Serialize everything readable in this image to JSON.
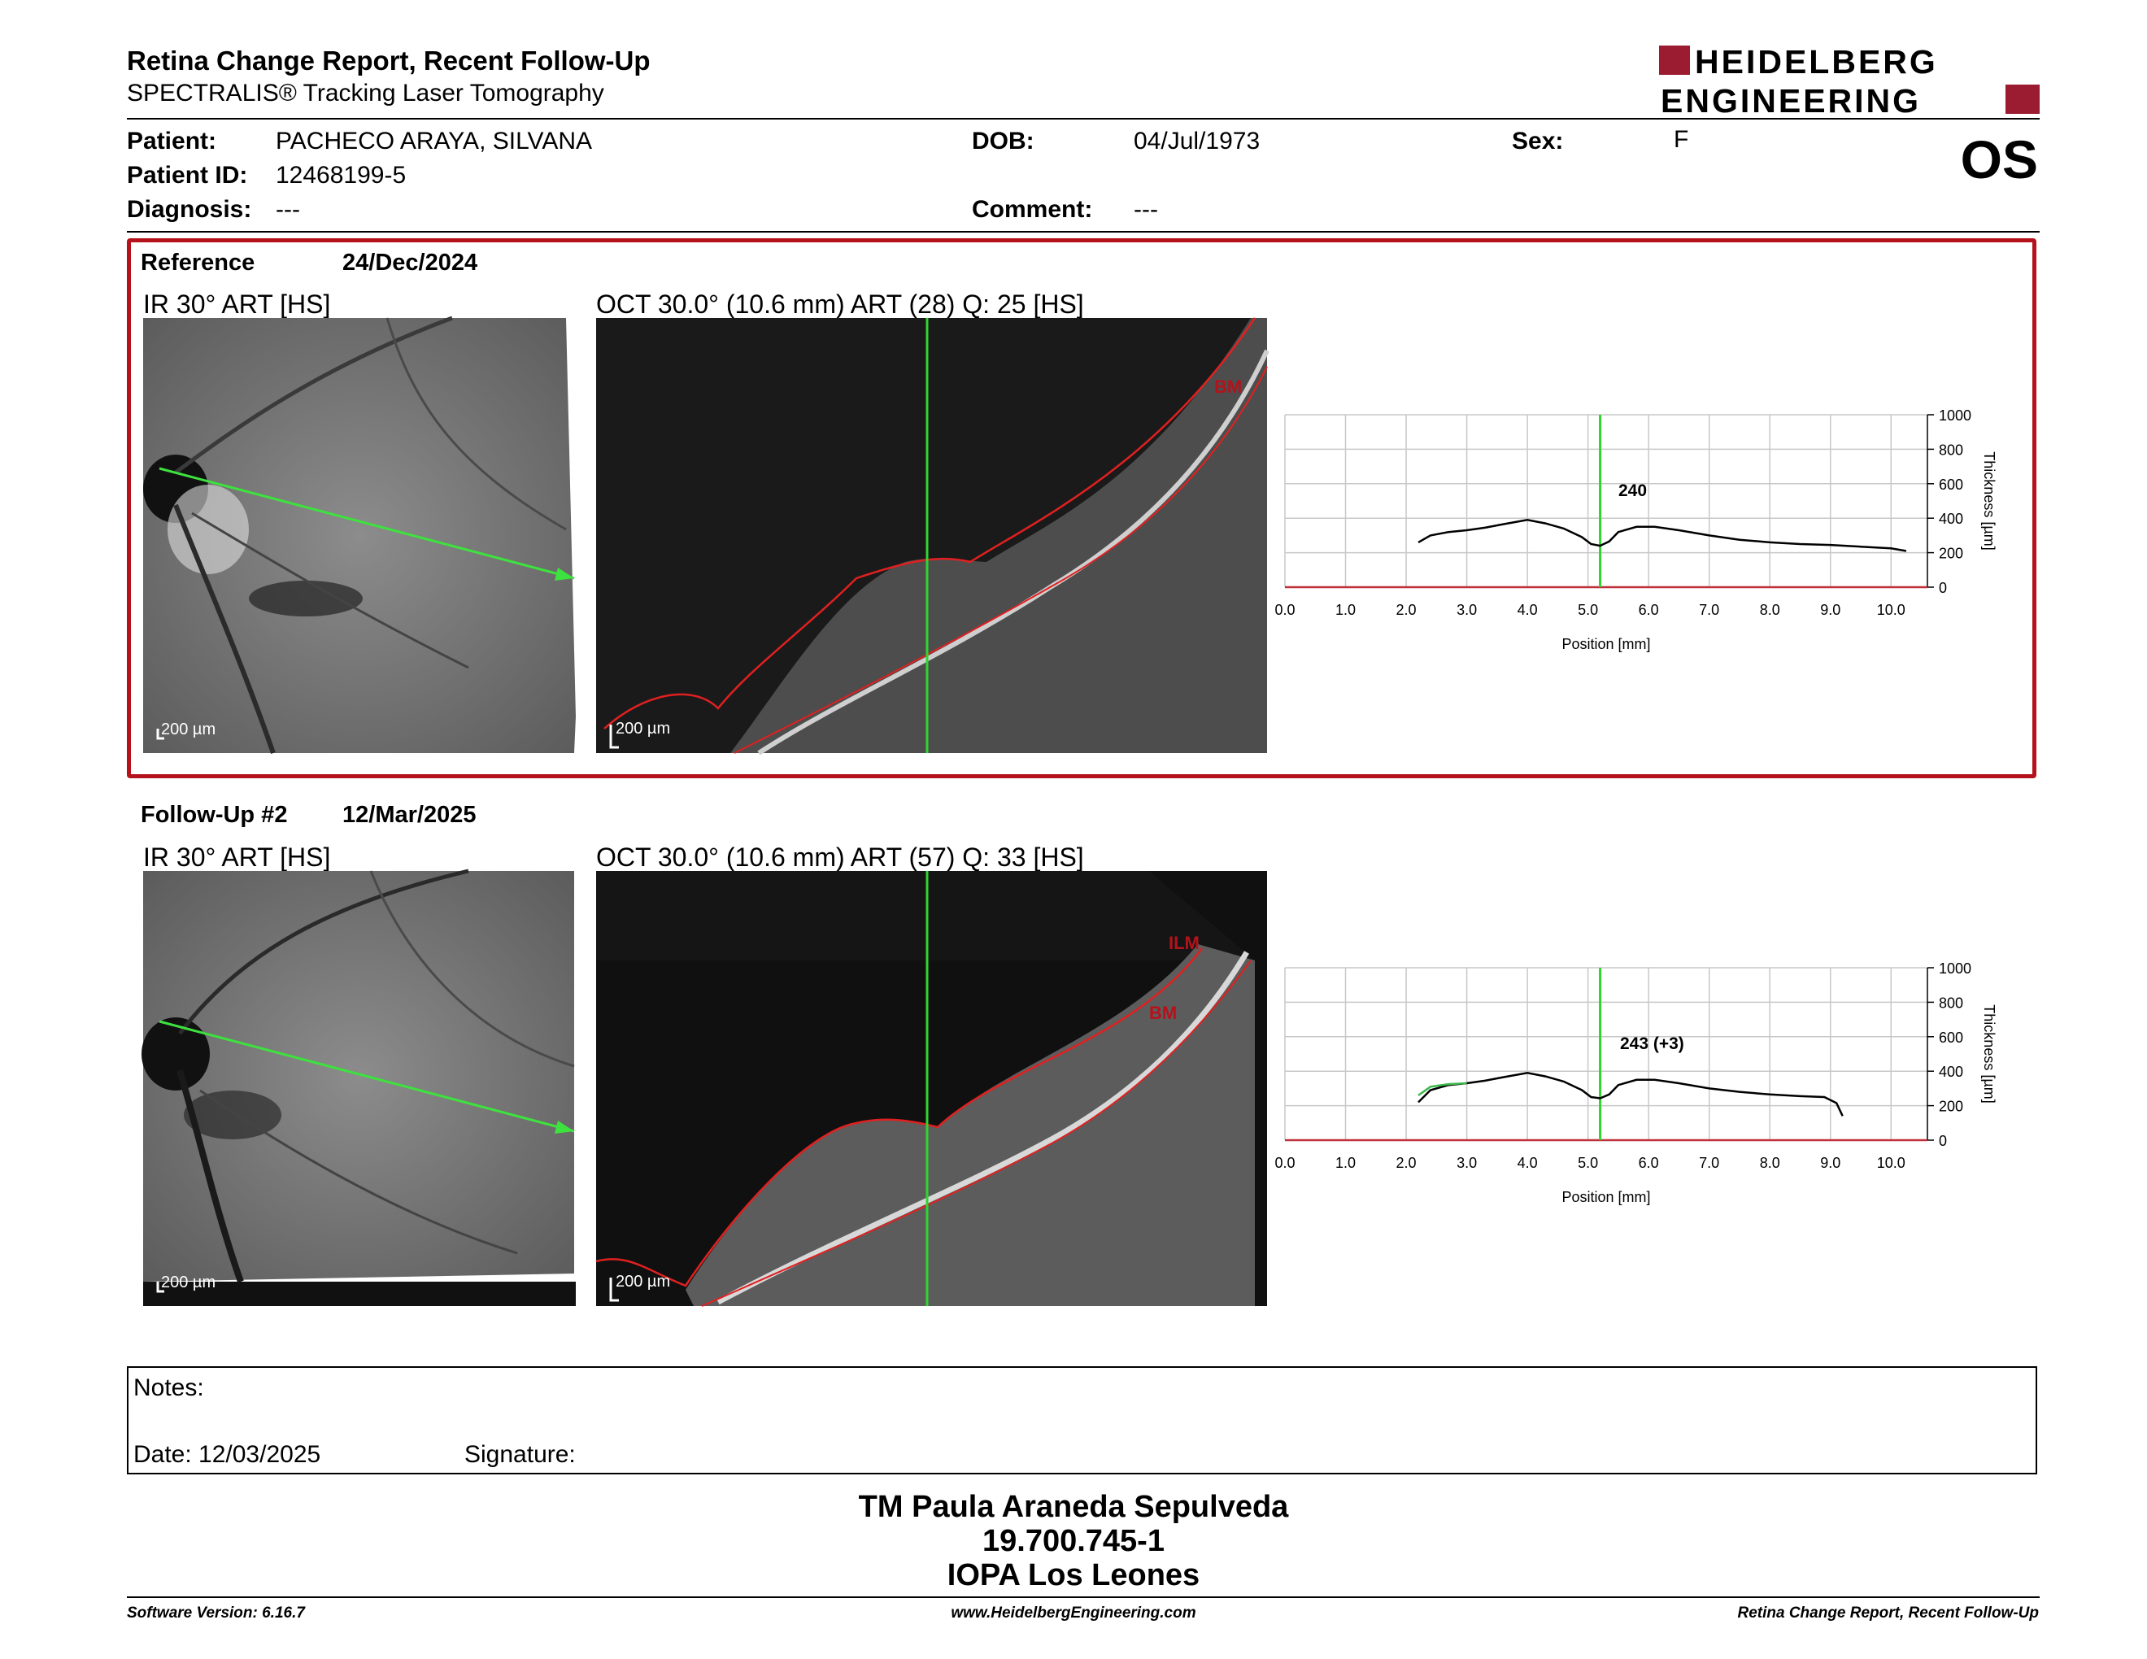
{
  "header": {
    "title": "Retina Change Report, Recent Follow-Up",
    "subtitle": "SPECTRALIS® Tracking Laser Tomography",
    "logo_line1": "HEIDELBERG",
    "logo_line2": "ENGINEERING",
    "brand_color": "#9b1b30"
  },
  "patient": {
    "patient_label": "Patient:",
    "patient_value": "PACHECO ARAYA, SILVANA",
    "id_label": "Patient ID:",
    "id_value": "12468199-5",
    "diagnosis_label": "Diagnosis:",
    "diagnosis_value": "---",
    "dob_label": "DOB:",
    "dob_value": "04/Jul/1973",
    "comment_label": "Comment:",
    "comment_value": "---",
    "sex_label": "Sex:",
    "sex_value": "F",
    "eye": "OS"
  },
  "reference": {
    "label": "Reference",
    "date": "24/Dec/2024",
    "ir_label": "IR 30° ART [HS]",
    "oct_label": "OCT 30.0° (10.6 mm) ART (28) Q: 25 [HS]",
    "scale": "200 µm",
    "layers": [
      "BM"
    ],
    "thickness_label": "240"
  },
  "followup": {
    "label": "Follow-Up #2",
    "date": "12/Mar/2025",
    "ir_label": "IR 30° ART [HS]",
    "oct_label": "OCT 30.0° (10.6 mm) ART (57) Q: 33 [HS]",
    "scale": "200 µm",
    "layers": [
      "ILM",
      "BM"
    ],
    "thickness_label": "243 (+3)"
  },
  "chart_data": [
    {
      "type": "line",
      "xlabel": "Position [mm]",
      "ylabel": "Thickness [µm]",
      "xlim": [
        0,
        10.6
      ],
      "ylim": [
        0,
        1000
      ],
      "xticks": [
        "0.0",
        "1.0",
        "2.0",
        "3.0",
        "4.0",
        "5.0",
        "6.0",
        "7.0",
        "8.0",
        "9.0",
        "10.0"
      ],
      "yticks": [
        "0",
        "200",
        "400",
        "600",
        "800",
        "1000"
      ],
      "marker_x": 5.2,
      "grid": true,
      "series": [
        {
          "color": "#000000",
          "x": [
            2.2,
            2.4,
            2.7,
            3.0,
            3.3,
            3.6,
            4.0,
            4.3,
            4.6,
            4.9,
            5.05,
            5.2,
            5.35,
            5.5,
            5.8,
            6.1,
            6.5,
            7.0,
            7.5,
            8.0,
            8.5,
            9.0,
            9.5,
            10.0,
            10.25
          ],
          "y": [
            260,
            300,
            320,
            330,
            345,
            365,
            390,
            370,
            340,
            290,
            250,
            240,
            265,
            320,
            350,
            350,
            330,
            300,
            275,
            260,
            250,
            245,
            235,
            225,
            210
          ]
        }
      ]
    },
    {
      "type": "line",
      "xlabel": "Position [mm]",
      "ylabel": "Thickness [µm]",
      "xlim": [
        0,
        10.6
      ],
      "ylim": [
        0,
        1000
      ],
      "xticks": [
        "0.0",
        "1.0",
        "2.0",
        "3.0",
        "4.0",
        "5.0",
        "6.0",
        "7.0",
        "8.0",
        "9.0",
        "10.0"
      ],
      "yticks": [
        "0",
        "200",
        "400",
        "600",
        "800",
        "1000"
      ],
      "marker_x": 5.2,
      "grid": true,
      "series": [
        {
          "color": "#000000",
          "x": [
            2.2,
            2.4,
            2.7,
            3.0,
            3.3,
            3.6,
            4.0,
            4.3,
            4.6,
            4.9,
            5.05,
            5.2,
            5.35,
            5.5,
            5.8,
            6.1,
            6.5,
            7.0,
            7.5,
            8.0,
            8.5,
            8.9,
            9.1,
            9.2
          ],
          "y": [
            220,
            290,
            320,
            330,
            345,
            365,
            390,
            370,
            340,
            290,
            250,
            243,
            265,
            320,
            350,
            350,
            330,
            300,
            280,
            265,
            255,
            250,
            215,
            140
          ]
        },
        {
          "color": "#3cb84a",
          "x": [
            2.2,
            2.4,
            2.7,
            3.0
          ],
          "y": [
            260,
            310,
            325,
            330
          ]
        }
      ]
    }
  ],
  "notes": {
    "notes_label": "Notes:",
    "date_label": "Date: 12/03/2025",
    "signature_label": "Signature:"
  },
  "signature_block": {
    "line1": "TM Paula Araneda Sepulveda",
    "line2": "19.700.745-1",
    "line3": "IOPA Los Leones"
  },
  "footer": {
    "software": "Software Version: 6.16.7",
    "website": "www.HeidelbergEngineering.com",
    "report": "Retina Change Report, Recent Follow-Up"
  }
}
